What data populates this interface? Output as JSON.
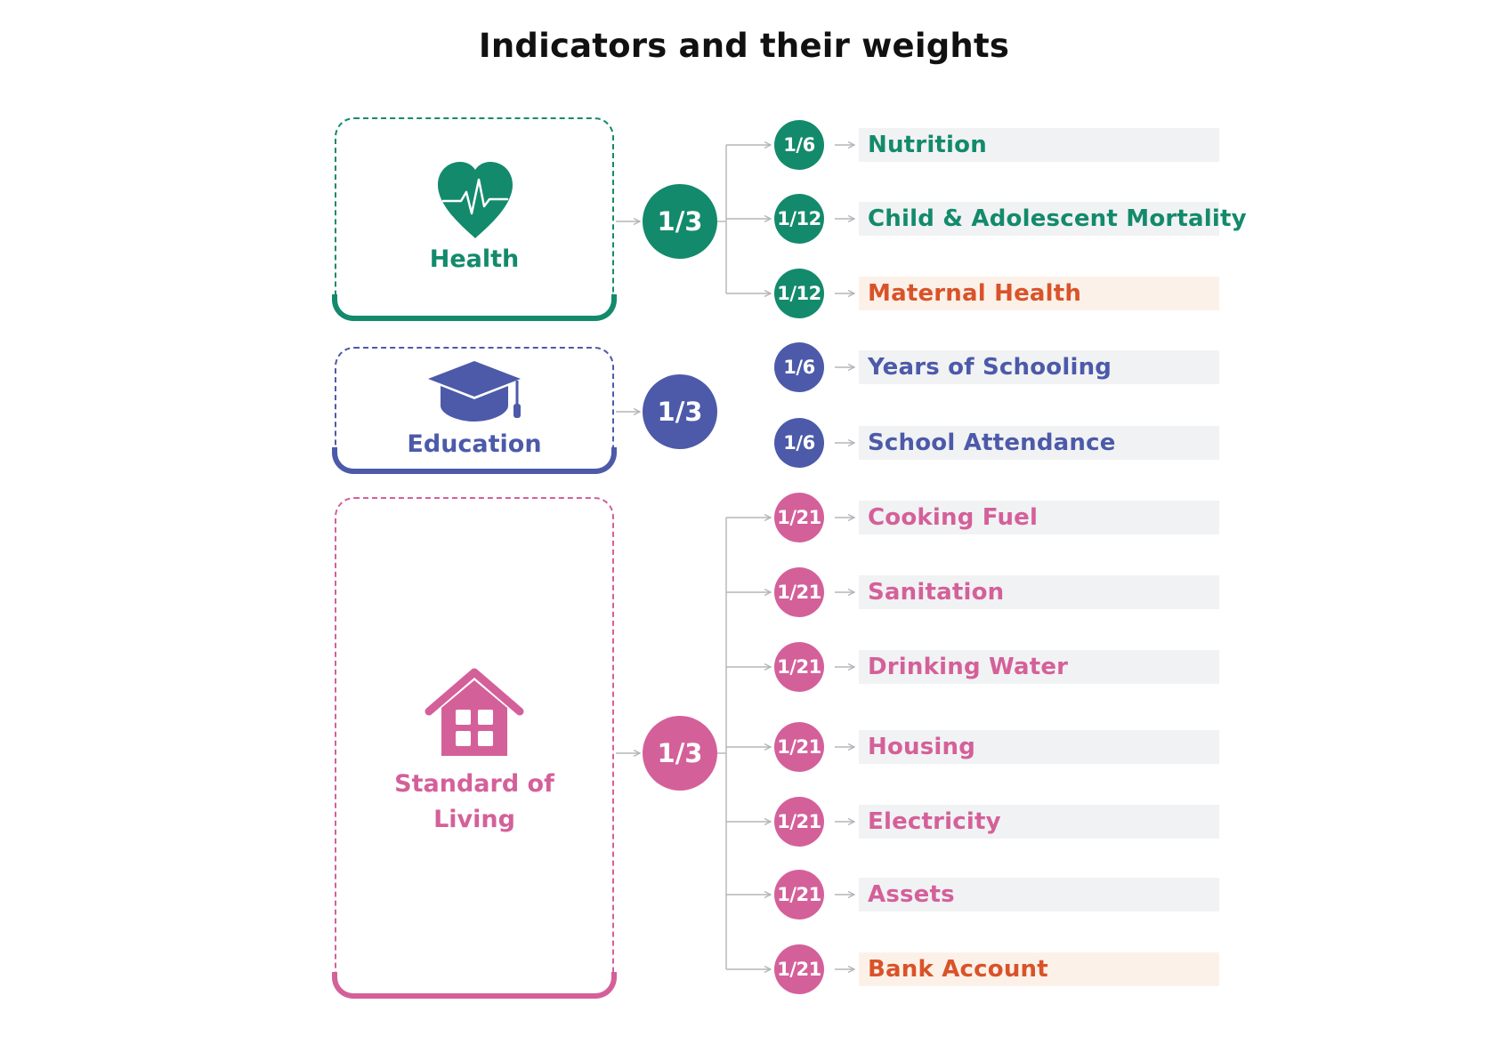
{
  "title": "Indicators and their weights",
  "colors": {
    "health": "#138a6c",
    "education": "#4c5aa9",
    "living": "#d4609a",
    "highlight": "#d9532a",
    "connector": "#b5b5b5"
  },
  "dimensions": [
    {
      "id": "health",
      "label": "Health",
      "icon": "heart-pulse-icon",
      "weight": "1/3",
      "indicators": [
        {
          "weight": "1/6",
          "label": "Nutrition",
          "highlight": false
        },
        {
          "weight": "1/12",
          "label": "Child & Adolescent Mortality",
          "highlight": false
        },
        {
          "weight": "1/12",
          "label": "Maternal Health",
          "highlight": true
        }
      ]
    },
    {
      "id": "education",
      "label": "Education",
      "icon": "graduation-cap-icon",
      "weight": "1/3",
      "indicators": [
        {
          "weight": "1/6",
          "label": "Years of Schooling",
          "highlight": false
        },
        {
          "weight": "1/6",
          "label": "School Attendance",
          "highlight": false
        }
      ]
    },
    {
      "id": "living",
      "label": "Standard of Living",
      "label_lines": [
        "Standard of",
        "Living"
      ],
      "icon": "house-icon",
      "weight": "1/3",
      "indicators": [
        {
          "weight": "1/21",
          "label": "Cooking Fuel",
          "highlight": false
        },
        {
          "weight": "1/21",
          "label": "Sanitation",
          "highlight": false
        },
        {
          "weight": "1/21",
          "label": "Drinking Water",
          "highlight": false
        },
        {
          "weight": "1/21",
          "label": "Housing",
          "highlight": false
        },
        {
          "weight": "1/21",
          "label": "Electricity",
          "highlight": false
        },
        {
          "weight": "1/21",
          "label": "Assets",
          "highlight": false
        },
        {
          "weight": "1/21",
          "label": "Bank Account",
          "highlight": true
        }
      ]
    }
  ]
}
